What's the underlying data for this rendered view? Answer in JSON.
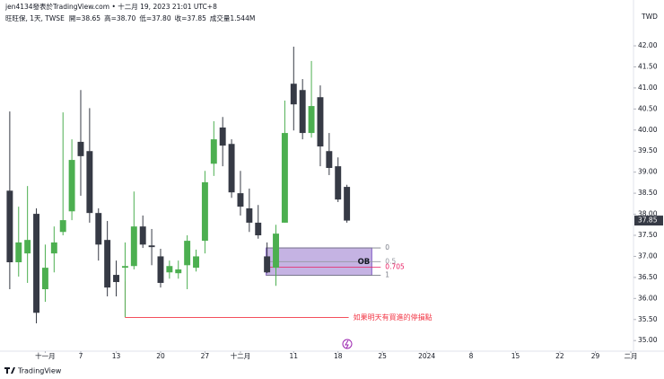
{
  "chart_data": {
    "type": "candlestick",
    "header": "jen4134發表於TradingView.com • 十二月 19, 2023 21:01 UTC+8",
    "symbol": "旺旺保, 1天, TWSE",
    "ohlc_labels": [
      "開=38.65",
      "高=38.70",
      "低=37.80",
      "收=37.85",
      "成交量1.544M"
    ],
    "currency": "TWD",
    "open": [
      38.56,
      36.86,
      37.07,
      38.01,
      36.22,
      37.07,
      37.58,
      38.07,
      39.72,
      39.5,
      38.03,
      37.39,
      36.56,
      36.73,
      36.77,
      37.71,
      37.26,
      37.0,
      36.62,
      36.6,
      36.79,
      36.73,
      37.37,
      39.2,
      40.06,
      39.67,
      38.5,
      38.14,
      37.8,
      37.0,
      36.73,
      37.8,
      41.1,
      40.95,
      39.93,
      40.78,
      39.5,
      39.14,
      38.65
    ],
    "high": [
      40.44,
      38.18,
      38.67,
      38.14,
      37.28,
      37.71,
      40.42,
      39.78,
      40.95,
      40.52,
      38.14,
      37.84,
      36.9,
      37.33,
      38.54,
      37.97,
      37.65,
      37.18,
      36.9,
      36.9,
      37.5,
      37.16,
      39.03,
      40.21,
      40.31,
      39.78,
      39.03,
      38.61,
      38.22,
      37.33,
      37.75,
      40.7,
      41.98,
      41.21,
      41.64,
      41.06,
      39.93,
      39.35,
      38.7
    ],
    "low": [
      36.22,
      36.52,
      36.37,
      35.41,
      35.92,
      36.62,
      37.5,
      37.86,
      38.44,
      37.8,
      36.9,
      36.05,
      36.05,
      35.56,
      36.69,
      37.2,
      36.79,
      36.26,
      36.47,
      36.47,
      36.22,
      36.64,
      37.07,
      38.91,
      39.14,
      38.39,
      37.97,
      37.58,
      37.42,
      36.6,
      36.3,
      37.8,
      39.99,
      39.78,
      39.82,
      39.14,
      38.93,
      38.29,
      37.8
    ],
    "close": [
      36.86,
      37.33,
      37.39,
      35.66,
      36.73,
      37.33,
      37.86,
      39.29,
      39.38,
      38.03,
      37.28,
      36.26,
      36.39,
      36.77,
      37.71,
      37.28,
      37.22,
      36.37,
      36.77,
      36.69,
      37.37,
      37.0,
      38.76,
      39.78,
      39.63,
      38.52,
      38.18,
      37.8,
      37.5,
      36.62,
      37.54,
      39.93,
      40.61,
      39.93,
      40.57,
      39.61,
      39.1,
      38.35,
      37.85
    ],
    "up_color": "#4caf50",
    "down_color": "#363a45",
    "xlim": [
      -1.1,
      70.3
    ],
    "xticks": [
      {
        "value": 4,
        "label": "十一月"
      },
      {
        "value": 8,
        "label": "7"
      },
      {
        "value": 12,
        "label": "13"
      },
      {
        "value": 17,
        "label": "20"
      },
      {
        "value": 22,
        "label": "27"
      },
      {
        "value": 26,
        "label": "十二月"
      },
      {
        "value": 32,
        "label": "11"
      },
      {
        "value": 37,
        "label": "18"
      },
      {
        "value": 42,
        "label": "25"
      },
      {
        "value": 47,
        "label": "2024"
      },
      {
        "value": 52,
        "label": "8"
      },
      {
        "value": 57,
        "label": "15"
      },
      {
        "value": 62,
        "label": "22"
      },
      {
        "value": 66,
        "label": "29"
      },
      {
        "value": 70,
        "label": "二月"
      }
    ],
    "ylim": [
      34.77,
      42.875
    ],
    "yticks": [
      {
        "value": 35,
        "label": "35.00"
      },
      {
        "value": 35.5,
        "label": "35.50"
      },
      {
        "value": 36,
        "label": "36.00"
      },
      {
        "value": 36.5,
        "label": "36.50"
      },
      {
        "value": 37,
        "label": "37.00"
      },
      {
        "value": 37.5,
        "label": "37.50"
      },
      {
        "value": 38,
        "label": "38.00"
      },
      {
        "value": 38.5,
        "label": "38.50"
      },
      {
        "value": 39,
        "label": "39.00"
      },
      {
        "value": 39.5,
        "label": "39.50"
      },
      {
        "value": 40,
        "label": "40.00"
      },
      {
        "value": 40.5,
        "label": "40.50"
      },
      {
        "value": 41,
        "label": "41.00"
      },
      {
        "value": 41.5,
        "label": "41.50"
      },
      {
        "value": 42,
        "label": "42.00"
      }
    ],
    "order_block": {
      "label": "OB",
      "fib_levels": [
        {
          "ratio": 0,
          "price": 37.2
        },
        {
          "ratio": 0.5,
          "price": 36.875
        },
        {
          "ratio": 0.705,
          "price": 36.74
        },
        {
          "ratio": 1,
          "price": 36.55
        }
      ]
    },
    "stop_line": {
      "price": 35.55,
      "label": "如果明天有買進的停損點"
    },
    "brand": "TradingView"
  }
}
